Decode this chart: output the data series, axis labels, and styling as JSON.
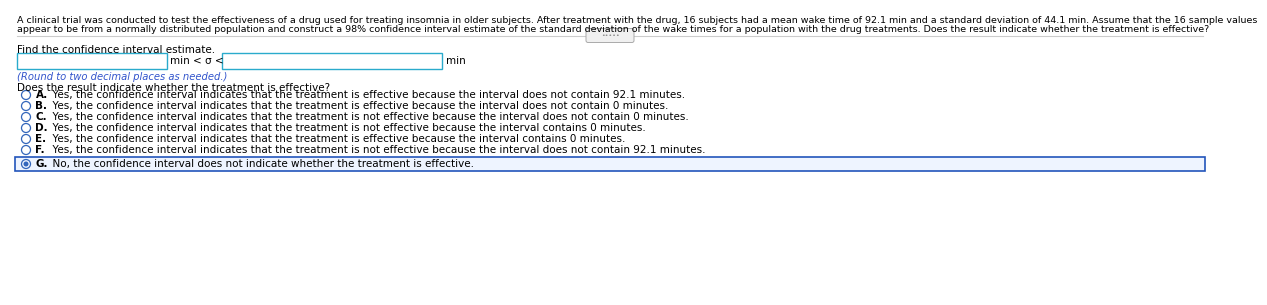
{
  "header_line1": "A clinical trial was conducted to test the effectiveness of a drug used for treating insomnia in older subjects. After treatment with the drug, 16 subjects had a mean wake time of 92.1 min and a standard deviation of 44.1 min. Assume that the 16 sample values",
  "header_line2": "appear to be from a normally distributed population and construct a 98% confidence interval estimate of the standard deviation of the wake times for a population with the drug treatments. Does the result indicate whether the treatment is effective?",
  "find_text": "Find the confidence interval estimate.",
  "between_label": "min < σ <",
  "after_label": "min",
  "round_text": "(Round to two decimal places as needed.)",
  "does_text": "Does the result indicate whether the treatment is effective?",
  "options": [
    "A.  Yes, the confidence interval indicates that the treatment is effective because the interval does not contain 92.1 minutes.",
    "B.  Yes, the confidence interval indicates that the treatment is effective because the interval does not contain 0 minutes.",
    "C.  Yes, the confidence interval indicates that the treatment is not effective because the interval does not contain 0 minutes.",
    "D.  Yes, the confidence interval indicates that the treatment is not effective because the interval contains 0 minutes.",
    "E.  Yes, the confidence interval indicates that the treatment is effective because the interval contains 0 minutes.",
    "F.  Yes, the confidence interval indicates that the treatment is not effective because the interval does not contain 92.1 minutes.",
    "G.  No, the confidence interval does not indicate whether the treatment is effective."
  ],
  "selected_option": 6,
  "bg_color": "#ffffff",
  "text_color": "#000000",
  "option_color": "#000000",
  "box_border_color": "#2aabcc",
  "selected_fill_color": "#eef4ff",
  "selected_border_color": "#2255bb",
  "divider_color": "#cccccc",
  "round_text_color": "#3355cc",
  "header_fontsize": 6.8,
  "body_fontsize": 7.5,
  "option_fontsize": 7.5,
  "radio_border_color": "#3366bb"
}
